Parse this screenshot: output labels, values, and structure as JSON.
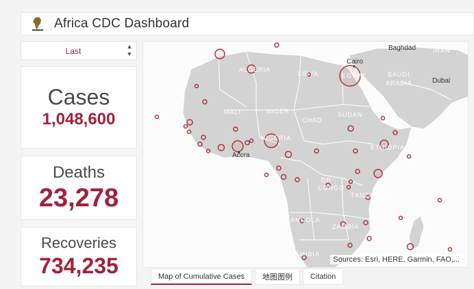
{
  "header": {
    "title": "Africa CDC Dashboard",
    "logo_icon": "africa-cdc-logo"
  },
  "selector": {
    "value": "Last"
  },
  "stats": {
    "cases": {
      "label": "Cases",
      "value": "1,048,600"
    },
    "deaths": {
      "label": "Deaths",
      "value": "23,278"
    },
    "recoveries": {
      "label": "Recoveries",
      "value": "734,235"
    }
  },
  "map": {
    "attribution": "Sources: Esri, HERE, Garmin, FAO,...",
    "city_labels": [
      "Baghdad",
      "Cairo",
      "Dubai",
      "Accra"
    ],
    "country_labels": [
      "ALGERIA",
      "LIBYA",
      "EGYPT",
      "SAUDI",
      "ARABIA",
      "IRAN",
      "MALI",
      "NIGER",
      "CHAD",
      "SUDAN",
      "NIGERIA",
      "ETHIOPIA",
      "DR",
      "CONGO",
      "TANZANIA",
      "ANGOLA",
      "ZAMBIA",
      "NAMIBIA"
    ],
    "colors": {
      "land": "#d3d3d3",
      "border": "#ffffff",
      "marker": "#b0343f"
    }
  },
  "tabs": [
    {
      "label": "Map of Cumulative Cases",
      "active": true
    },
    {
      "label": "地图图例",
      "active": false
    },
    {
      "label": "Citation",
      "active": false
    }
  ]
}
